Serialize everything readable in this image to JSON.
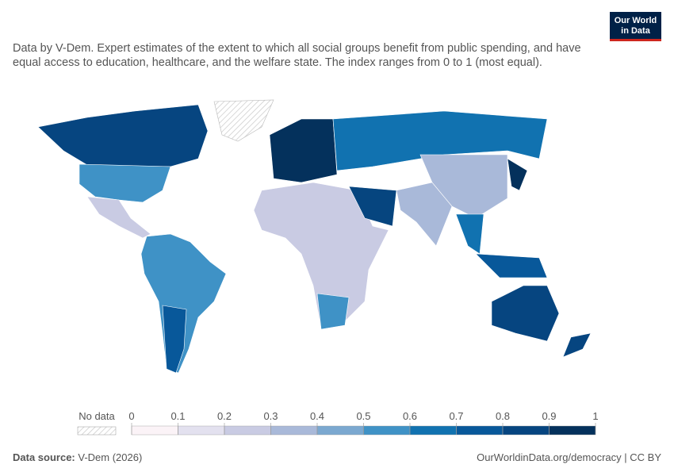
{
  "logo": {
    "line1": "Our World",
    "line2": "in Data"
  },
  "subtitle": "Data by V-Dem. Expert estimates of the extent to which all social groups benefit from public spending, and have equal access to education, healthcare, and the welfare state. The index ranges from 0 to 1 (most equal).",
  "legend": {
    "no_data_label": "No data",
    "ticks": [
      0,
      0.1,
      0.2,
      0.3,
      0.4,
      0.5,
      0.6,
      0.7,
      0.8,
      0.9,
      1
    ],
    "colors": [
      "#fbf3f7",
      "#e3e1ef",
      "#c9cbe3",
      "#a9b9d9",
      "#7ba8d0",
      "#3f92c6",
      "#1172b0",
      "#08589a",
      "#064580",
      "#04315c"
    ]
  },
  "footer": {
    "source_label": "Data source:",
    "source": "V-Dem (2026)",
    "url": "OurWorldinData.org/democracy | CC BY"
  }
}
